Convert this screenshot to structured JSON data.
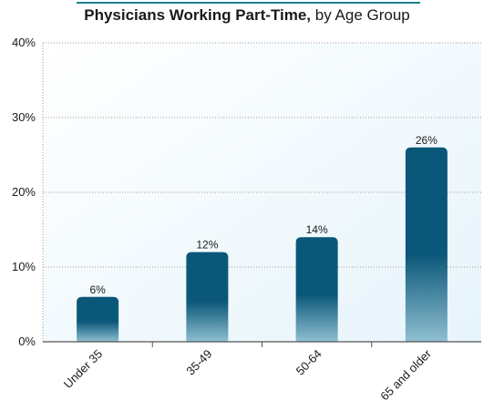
{
  "chart_data": {
    "type": "bar",
    "title": "Physicians Working Part-Time,",
    "subtitle": "by Age Group",
    "categories": [
      "Under 35",
      "35-49",
      "50-64",
      "65 and older"
    ],
    "values": [
      6,
      12,
      14,
      26
    ],
    "data_labels": [
      "6%",
      "12%",
      "14%",
      "26%"
    ],
    "ylim": [
      0,
      40
    ],
    "yticks": [
      0,
      10,
      20,
      30,
      40
    ],
    "ytick_labels": [
      "0%",
      "10%",
      "20%",
      "30%",
      "40%"
    ],
    "xlabel": "",
    "ylabel": "",
    "grid": true,
    "legend": "none",
    "colors": {
      "bar_top": "#0b5779",
      "bar_bottom": "#8fbfd1",
      "title_rule": "#1f7f8f",
      "plot_bg": "#eef8fd",
      "axis": "#555555",
      "grid": "#9a9a9a"
    }
  }
}
